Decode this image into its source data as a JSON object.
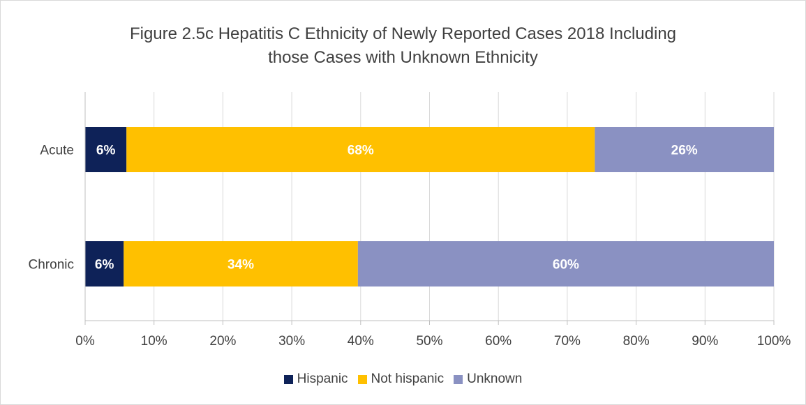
{
  "chart_data": {
    "type": "bar",
    "orientation": "horizontal",
    "stacked": true,
    "title_lines": [
      "Figure 2.5c Hepatitis C Ethnicity of Newly Reported Cases 2018 Including",
      "those Cases with Unknown Ethnicity"
    ],
    "categories": [
      "Acute",
      "Chronic"
    ],
    "series": [
      {
        "name": "Hispanic",
        "color": "#0e2258",
        "values": [
          6,
          5.6
        ],
        "labels": [
          "6%",
          "6%"
        ]
      },
      {
        "name": "Not hispanic",
        "color": "#ffc000",
        "values": [
          68,
          34
        ],
        "labels": [
          "68%",
          "34%"
        ]
      },
      {
        "name": "Unknown",
        "color": "#8a91c2",
        "values": [
          26,
          60.4
        ],
        "labels": [
          "26%",
          "60%"
        ]
      }
    ],
    "xlim": [
      0,
      100
    ],
    "x_ticks": [
      0,
      10,
      20,
      30,
      40,
      50,
      60,
      70,
      80,
      90,
      100
    ],
    "x_tick_labels": [
      "0%",
      "10%",
      "20%",
      "30%",
      "40%",
      "50%",
      "60%",
      "70%",
      "80%",
      "90%",
      "100%"
    ],
    "grid": true,
    "legend_position": "bottom",
    "xlabel": "",
    "ylabel": ""
  }
}
